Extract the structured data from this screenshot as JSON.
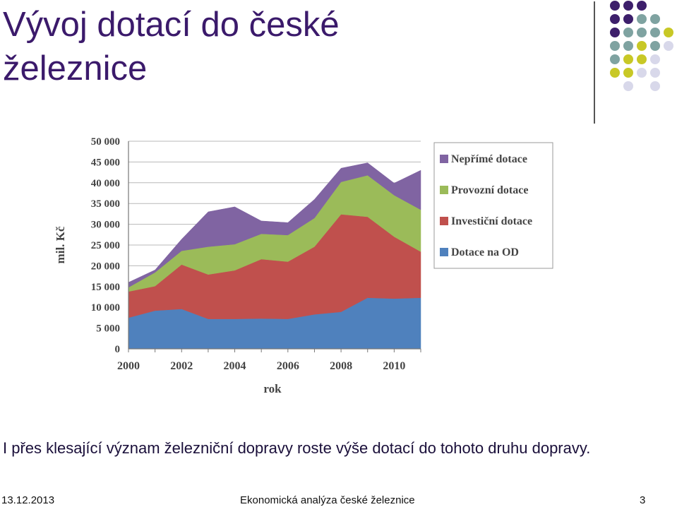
{
  "slide": {
    "title": "Vývoj dotací do české železnice",
    "caption": "I přes klesající význam železniční dopravy roste výše dotací do tohoto druhu dopravy.",
    "footer_date": "13.12.2013",
    "footer_title": "Ekonomická analýza české železnice",
    "footer_page": "3"
  },
  "colors": {
    "title": "#3b1a6b",
    "dot_purple": "#3d1f6b",
    "dot_teal": "#7fa3a1",
    "dot_yellow": "#c8c826",
    "dot_lavender": "#d8d8ea"
  },
  "chart_data": {
    "type": "area",
    "stacked": true,
    "ylabel": "mil. Kč",
    "xlabel": "rok",
    "x": [
      2000,
      2001,
      2002,
      2003,
      2004,
      2005,
      2006,
      2007,
      2008,
      2009,
      2010,
      2011
    ],
    "x_ticks": [
      "2000",
      "2002",
      "2004",
      "2006",
      "2008",
      "2010"
    ],
    "ylim": [
      0,
      50000
    ],
    "y_ticks": [
      "0",
      "5 000",
      "10 000",
      "15 000",
      "20 000",
      "25 000",
      "30 000",
      "35 000",
      "40 000",
      "45 000",
      "50 000"
    ],
    "grid": true,
    "legend_position": "right",
    "series": [
      {
        "name": "Dotace na OD",
        "color": "#4f81bd",
        "values": [
          7500,
          9200,
          9600,
          7200,
          7200,
          7300,
          7200,
          8300,
          8900,
          12300,
          12100,
          12300
        ]
      },
      {
        "name": "Investiční dotace",
        "color": "#c0504d",
        "values": [
          6300,
          5900,
          10700,
          10700,
          11700,
          14300,
          13800,
          16300,
          23500,
          19500,
          14900,
          11100
        ]
      },
      {
        "name": "Provozní dotace",
        "color": "#9bbb59",
        "values": [
          1000,
          3300,
          3300,
          6700,
          6300,
          6100,
          6400,
          6900,
          7800,
          10000,
          10000,
          10100
        ]
      },
      {
        "name": "Nepřímé dotace",
        "color": "#8064a2",
        "values": [
          1200,
          600,
          2800,
          8400,
          9000,
          3100,
          3000,
          4500,
          3300,
          3000,
          2900,
          9500
        ]
      }
    ]
  }
}
